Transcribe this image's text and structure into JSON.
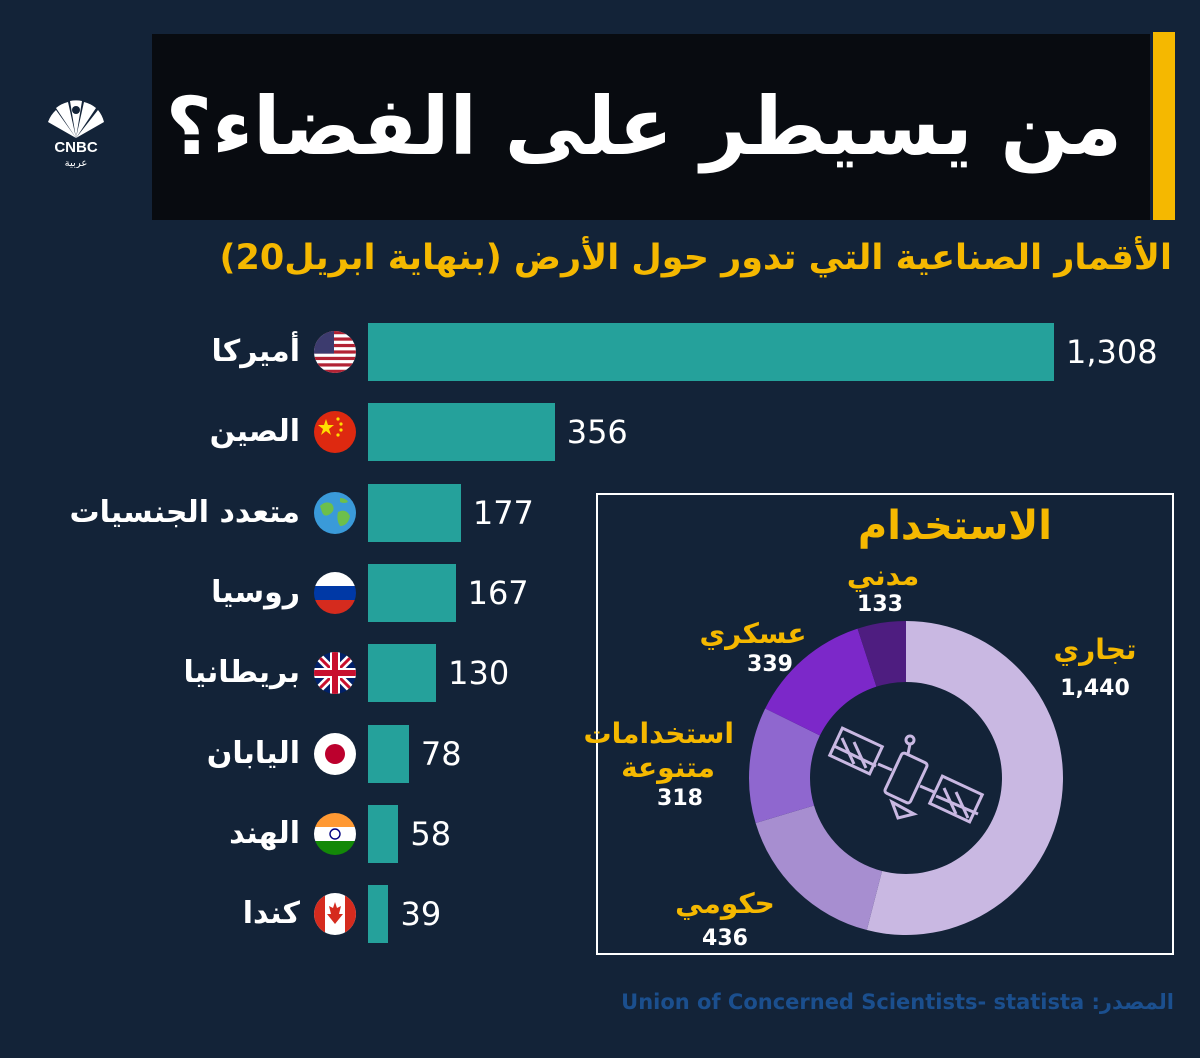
{
  "header": {
    "title": "من يسيطر على الفضاء؟",
    "subtitle": "الأقمار الصناعية التي تدور حول الأرض (بنهاية ابريل20)",
    "logo_text": "CNBC",
    "logo_subtext": "عربية"
  },
  "chart_data": [
    {
      "type": "bar",
      "orientation": "horizontal",
      "title": "الأقمار الصناعية التي تدور حول الأرض (بنهاية ابريل20)",
      "categories": [
        "أميركا",
        "الصين",
        "متعدد الجنسيات",
        "روسيا",
        "بريطانيا",
        "اليابان",
        "الهند",
        "كندا"
      ],
      "values": [
        1308,
        356,
        177,
        167,
        130,
        78,
        58,
        39
      ],
      "value_labels": [
        "1,308",
        "356",
        "177",
        "167",
        "130",
        "78",
        "58",
        "39"
      ],
      "flags": [
        "usa-flag-icon",
        "china-flag-icon",
        "globe-icon",
        "russia-flag-icon",
        "uk-flag-icon",
        "japan-flag-icon",
        "india-flag-icon",
        "canada-flag-icon"
      ],
      "bar_color": "#25a19b",
      "xlim": [
        0,
        1308
      ]
    },
    {
      "type": "pie",
      "style": "donut",
      "title": "الاستخدام",
      "slices": [
        {
          "label": "تجاري",
          "value": 1440,
          "value_label": "1,440",
          "color": "#c9b8e2"
        },
        {
          "label": "حكومي",
          "value": 436,
          "value_label": "436",
          "color": "#a78ed0"
        },
        {
          "label": "استخدامات متنوعة",
          "value": 318,
          "value_label": "318",
          "color": "#8f67cf"
        },
        {
          "label": "عسكري",
          "value": 339,
          "value_label": "339",
          "color": "#7c28c9"
        },
        {
          "label": "مدني",
          "value": 133,
          "value_label": "133",
          "color": "#4e1d80"
        }
      ],
      "center_icon": "satellite-icon"
    }
  ],
  "donut_labels": {
    "commercial": {
      "label": "تجاري",
      "value": "1,440"
    },
    "government": {
      "label": "حكومي",
      "value": "436"
    },
    "mixed_line1": "استخدامات",
    "mixed_line2": "متنوعة",
    "mixed_value": "318",
    "military": {
      "label": "عسكري",
      "value": "339"
    },
    "civil": {
      "label": "مدني",
      "value": "133"
    }
  },
  "footer": {
    "source": "المصدر: Union of Concerned Scientists- statista"
  },
  "colors": {
    "background": "#132338",
    "accent": "#f5b800",
    "bar": "#25a19b"
  }
}
